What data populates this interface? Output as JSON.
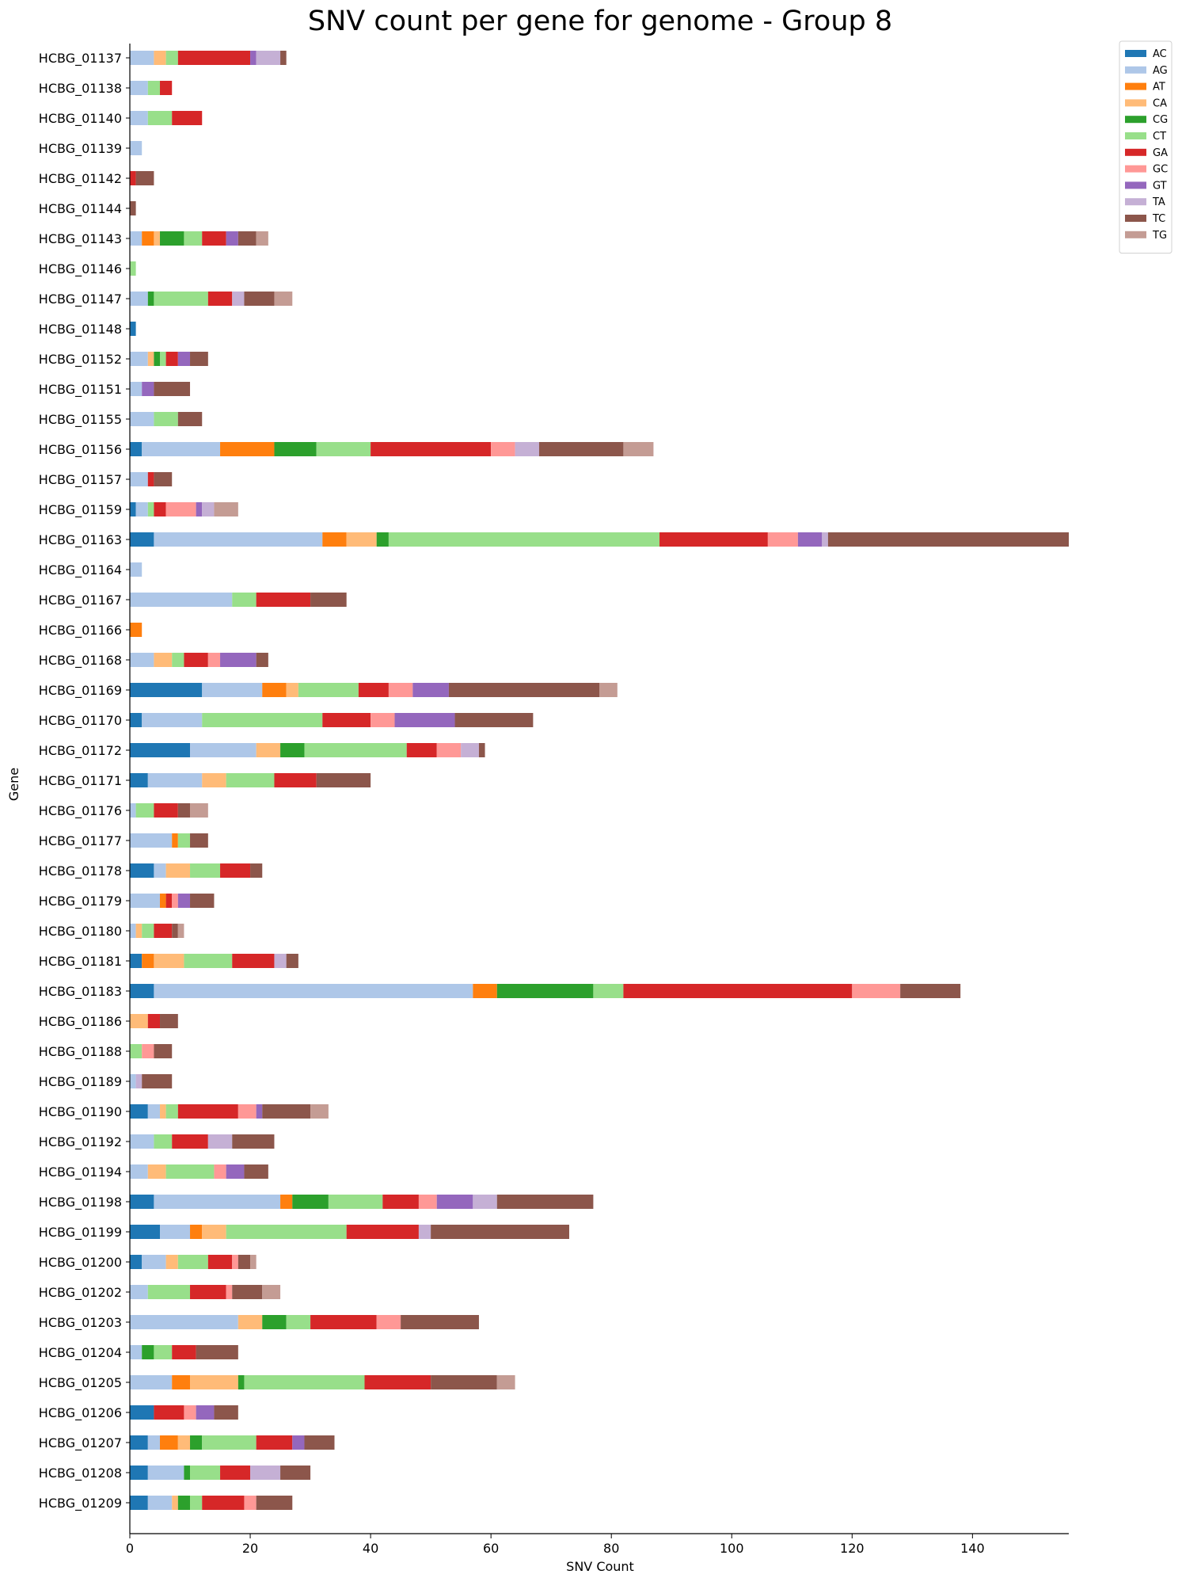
{
  "chart_data": {
    "type": "bar",
    "orientation": "horizontal",
    "stacked": true,
    "title": "SNV count per gene for genome - Group 8",
    "xlabel": "SNV Count",
    "ylabel": "Gene",
    "xlim": [
      0,
      156
    ],
    "xticks": [
      0,
      20,
      40,
      60,
      80,
      100,
      120,
      140
    ],
    "grid": false,
    "legend_position": "top-right",
    "series_names": [
      "AC",
      "AG",
      "AT",
      "CA",
      "CG",
      "CT",
      "GA",
      "GC",
      "GT",
      "TA",
      "TC",
      "TG"
    ],
    "colors": {
      "AC": "#1f77b4",
      "AG": "#aec7e8",
      "AT": "#ff7f0e",
      "CA": "#ffbb78",
      "CG": "#2ca02c",
      "CT": "#98df8a",
      "GA": "#d62728",
      "GC": "#ff9896",
      "GT": "#9467bd",
      "TA": "#c5b0d5",
      "TC": "#8c564b",
      "TG": "#c49c94"
    },
    "categories": [
      "HCBG_01137",
      "HCBG_01138",
      "HCBG_01140",
      "HCBG_01139",
      "HCBG_01142",
      "HCBG_01144",
      "HCBG_01143",
      "HCBG_01146",
      "HCBG_01147",
      "HCBG_01148",
      "HCBG_01152",
      "HCBG_01151",
      "HCBG_01155",
      "HCBG_01156",
      "HCBG_01157",
      "HCBG_01159",
      "HCBG_01163",
      "HCBG_01164",
      "HCBG_01167",
      "HCBG_01166",
      "HCBG_01168",
      "HCBG_01169",
      "HCBG_01170",
      "HCBG_01172",
      "HCBG_01171",
      "HCBG_01176",
      "HCBG_01177",
      "HCBG_01178",
      "HCBG_01179",
      "HCBG_01180",
      "HCBG_01181",
      "HCBG_01183",
      "HCBG_01186",
      "HCBG_01188",
      "HCBG_01189",
      "HCBG_01190",
      "HCBG_01192",
      "HCBG_01194",
      "HCBG_01198",
      "HCBG_01199",
      "HCBG_01200",
      "HCBG_01202",
      "HCBG_01203",
      "HCBG_01204",
      "HCBG_01205",
      "HCBG_01206",
      "HCBG_01207",
      "HCBG_01208",
      "HCBG_01209"
    ],
    "rows": [
      {
        "AG": 4,
        "CA": 2,
        "CT": 2,
        "GA": 12,
        "GT": 1,
        "TA": 4,
        "TC": 1
      },
      {
        "AG": 3,
        "CT": 2,
        "GA": 2
      },
      {
        "AG": 3,
        "CT": 4,
        "GA": 5
      },
      {
        "AG": 2
      },
      {
        "GA": 1,
        "TC": 3
      },
      {
        "TC": 1
      },
      {
        "AG": 2,
        "AT": 2,
        "CA": 1,
        "CG": 4,
        "CT": 3,
        "GA": 4,
        "GT": 2,
        "TC": 3,
        "TG": 2
      },
      {
        "CT": 1
      },
      {
        "AG": 3,
        "CG": 1,
        "CT": 9,
        "GA": 4,
        "TA": 2,
        "TC": 5,
        "TG": 3
      },
      {
        "AC": 1
      },
      {
        "AG": 3,
        "CA": 1,
        "CG": 1,
        "CT": 1,
        "GA": 2,
        "GT": 2,
        "TC": 3
      },
      {
        "AG": 2,
        "GT": 2,
        "TC": 6
      },
      {
        "AG": 4,
        "CT": 4,
        "TC": 4
      },
      {
        "AC": 2,
        "AG": 13,
        "AT": 9,
        "CG": 7,
        "CT": 9,
        "GA": 20,
        "GC": 4,
        "TA": 4,
        "TC": 14,
        "TG": 5
      },
      {
        "AG": 3,
        "GA": 1,
        "TC": 3
      },
      {
        "AC": 1,
        "AG": 2,
        "CT": 1,
        "GA": 2,
        "GC": 5,
        "GT": 1,
        "TA": 2,
        "TG": 4
      },
      {
        "AC": 4,
        "AG": 28,
        "AT": 4,
        "CA": 5,
        "CG": 2,
        "CT": 45,
        "GA": 18,
        "GC": 5,
        "GT": 4,
        "TA": 1,
        "TC": 40
      },
      {
        "AG": 2
      },
      {
        "AG": 17,
        "CT": 4,
        "GA": 9,
        "TC": 6
      },
      {
        "AT": 2
      },
      {
        "AG": 4,
        "CA": 3,
        "CT": 2,
        "GA": 4,
        "GC": 2,
        "GT": 6,
        "TC": 2
      },
      {
        "AC": 12,
        "AG": 10,
        "AT": 4,
        "CA": 2,
        "CT": 10,
        "GA": 5,
        "GC": 4,
        "GT": 6,
        "TC": 25,
        "TG": 3
      },
      {
        "AC": 2,
        "AG": 10,
        "CT": 20,
        "GA": 8,
        "GC": 4,
        "GT": 10,
        "TC": 13
      },
      {
        "AC": 10,
        "AG": 11,
        "CA": 4,
        "CG": 4,
        "CT": 17,
        "GA": 5,
        "GC": 4,
        "TA": 3,
        "TC": 1
      },
      {
        "AC": 3,
        "AG": 9,
        "CA": 4,
        "CT": 8,
        "GA": 7,
        "TC": 9
      },
      {
        "AG": 1,
        "CT": 3,
        "GA": 4,
        "TC": 2,
        "TG": 3
      },
      {
        "AG": 7,
        "AT": 1,
        "CT": 2,
        "TC": 3
      },
      {
        "AC": 4,
        "AG": 2,
        "CA": 4,
        "CT": 5,
        "GA": 5,
        "TC": 2
      },
      {
        "AG": 5,
        "AT": 1,
        "GA": 1,
        "GC": 1,
        "GT": 2,
        "TC": 4
      },
      {
        "AG": 1,
        "CA": 1,
        "CT": 2,
        "GA": 3,
        "TC": 1,
        "TG": 1
      },
      {
        "AC": 2,
        "AT": 2,
        "CA": 5,
        "CT": 8,
        "GA": 7,
        "TA": 2,
        "TC": 2
      },
      {
        "AC": 4,
        "AG": 53,
        "AT": 4,
        "CG": 16,
        "CT": 5,
        "GA": 38,
        "GC": 8,
        "TC": 10
      },
      {
        "CA": 3,
        "GA": 2,
        "TC": 3
      },
      {
        "CT": 2,
        "GC": 2,
        "TC": 3
      },
      {
        "AG": 1,
        "TA": 1,
        "TC": 5
      },
      {
        "AC": 3,
        "AG": 2,
        "CA": 1,
        "CT": 2,
        "GA": 10,
        "GC": 3,
        "GT": 1,
        "TC": 8,
        "TG": 3
      },
      {
        "AG": 4,
        "CT": 3,
        "GA": 6,
        "TA": 4,
        "TC": 7
      },
      {
        "AG": 3,
        "CA": 3,
        "CT": 8,
        "GC": 2,
        "GT": 3,
        "TC": 4
      },
      {
        "AC": 4,
        "AG": 21,
        "AT": 2,
        "CG": 6,
        "CT": 9,
        "GA": 6,
        "GC": 3,
        "GT": 6,
        "TA": 4,
        "TC": 16
      },
      {
        "AC": 5,
        "AG": 5,
        "AT": 2,
        "CA": 4,
        "CT": 20,
        "GA": 12,
        "TA": 2,
        "TC": 23
      },
      {
        "AC": 2,
        "AG": 4,
        "CA": 2,
        "CT": 5,
        "GA": 4,
        "GC": 1,
        "TC": 2,
        "TG": 1
      },
      {
        "AG": 3,
        "CT": 7,
        "GA": 6,
        "GC": 1,
        "TC": 5,
        "TG": 3
      },
      {
        "AG": 18,
        "CA": 4,
        "CG": 4,
        "CT": 4,
        "GA": 11,
        "GC": 4,
        "TC": 13
      },
      {
        "AG": 2,
        "CG": 2,
        "CT": 3,
        "GA": 4,
        "TC": 7
      },
      {
        "AG": 7,
        "AT": 3,
        "CA": 8,
        "CG": 1,
        "CT": 20,
        "GA": 11,
        "TC": 11,
        "TG": 3
      },
      {
        "AC": 4,
        "GA": 5,
        "GC": 2,
        "GT": 3,
        "TC": 4
      },
      {
        "AC": 3,
        "AG": 2,
        "AT": 3,
        "CA": 2,
        "CG": 2,
        "CT": 9,
        "GA": 6,
        "GT": 2,
        "TC": 5
      },
      {
        "AC": 3,
        "AG": 6,
        "CG": 1,
        "CT": 5,
        "GA": 5,
        "TA": 5,
        "TC": 5
      },
      {
        "AC": 3,
        "AG": 4,
        "CA": 1,
        "CG": 2,
        "CT": 2,
        "GA": 7,
        "GC": 2,
        "TC": 6
      }
    ]
  }
}
